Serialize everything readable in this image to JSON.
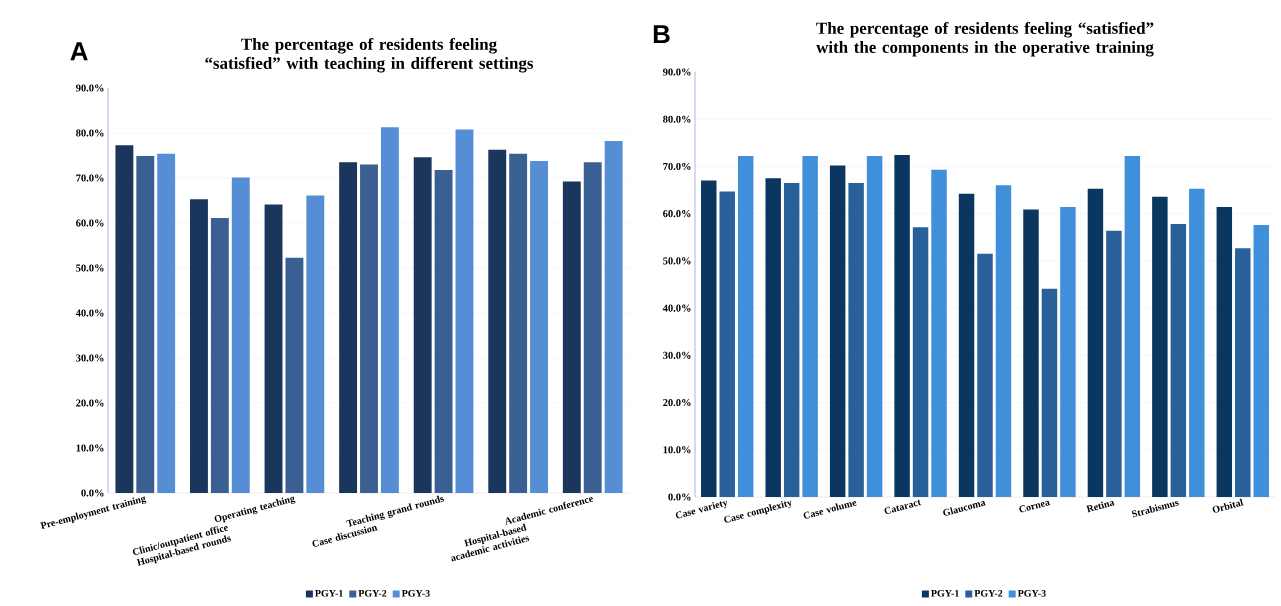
{
  "chart_data": [
    {
      "type": "bar",
      "title": "The percentage of residents feeling “satisfied” with teaching in different settings",
      "annotations": [
        "A"
      ],
      "categories": [
        "Pre-employment training",
        "Clinic/outpatient office Hospital-based rounds",
        "Operating teaching",
        "Case discussion",
        "Teaching grand rounds",
        "Hospital-based academic activities",
        "Academic conference"
      ],
      "series": [
        {
          "name": "PGY-1",
          "color": "#1b365d",
          "values": [
            77.3,
            65.3,
            64.1,
            73.5,
            74.6,
            76.3,
            69.2
          ]
        },
        {
          "name": "PGY-2",
          "color": "#3a5f92",
          "values": [
            74.9,
            61.1,
            52.3,
            73.0,
            71.8,
            75.4,
            73.5
          ]
        },
        {
          "name": "PGY-3",
          "color": "#558ed5",
          "values": [
            75.4,
            70.1,
            66.1,
            81.3,
            80.8,
            73.8,
            78.2
          ]
        }
      ],
      "ylim": [
        0,
        90
      ],
      "yticks": [
        {
          "value": 0,
          "label": "0.0%"
        },
        {
          "value": 10,
          "label": "10.0%"
        },
        {
          "value": 20,
          "label": "20.0%"
        },
        {
          "value": 30,
          "label": "30.0%"
        },
        {
          "value": 40,
          "label": "40.0%"
        },
        {
          "value": 50,
          "label": "50.0%"
        },
        {
          "value": 60,
          "label": "60.0%"
        },
        {
          "value": 70,
          "label": "70.0%"
        },
        {
          "value": 80,
          "label": "80.0%"
        },
        {
          "value": 90,
          "label": "90.0%"
        }
      ],
      "grid": "y",
      "legend": "bottom"
    },
    {
      "type": "bar",
      "title": "The percentage of residents feeling “satisfied” with the components in the operative training",
      "annotations": [
        "B"
      ],
      "categories": [
        "Case variety",
        "Case complexity",
        "Case volume",
        "Cataract",
        "Glaucoma",
        "Cornea",
        "Retina",
        "Strabismus",
        "Orbital"
      ],
      "series": [
        {
          "name": "PGY-1",
          "color": "#0b3660",
          "values": [
            67.0,
            67.5,
            70.2,
            72.4,
            64.2,
            60.9,
            65.3,
            63.6,
            61.4
          ]
        },
        {
          "name": "PGY-2",
          "color": "#2a6099",
          "values": [
            64.7,
            66.5,
            66.5,
            57.1,
            51.5,
            44.1,
            56.4,
            57.8,
            52.7
          ]
        },
        {
          "name": "PGY-3",
          "color": "#3f8fdb",
          "values": [
            72.2,
            72.2,
            72.2,
            69.3,
            66.0,
            61.4,
            72.2,
            65.3,
            57.6
          ]
        }
      ],
      "ylim": [
        0,
        90
      ],
      "yticks": [
        {
          "value": 0,
          "label": "0.0%"
        },
        {
          "value": 10,
          "label": "10.0%"
        },
        {
          "value": 20,
          "label": "20.0%"
        },
        {
          "value": 30,
          "label": "30.0%"
        },
        {
          "value": 40,
          "label": "40.0%"
        },
        {
          "value": 50,
          "label": "50.0%"
        },
        {
          "value": 60,
          "label": "60.0%"
        },
        {
          "value": 70,
          "label": "70.0%"
        },
        {
          "value": 80,
          "label": "80.0%"
        },
        {
          "value": 90,
          "label": "90.0%"
        }
      ],
      "grid": "y",
      "legend": "bottom"
    }
  ]
}
